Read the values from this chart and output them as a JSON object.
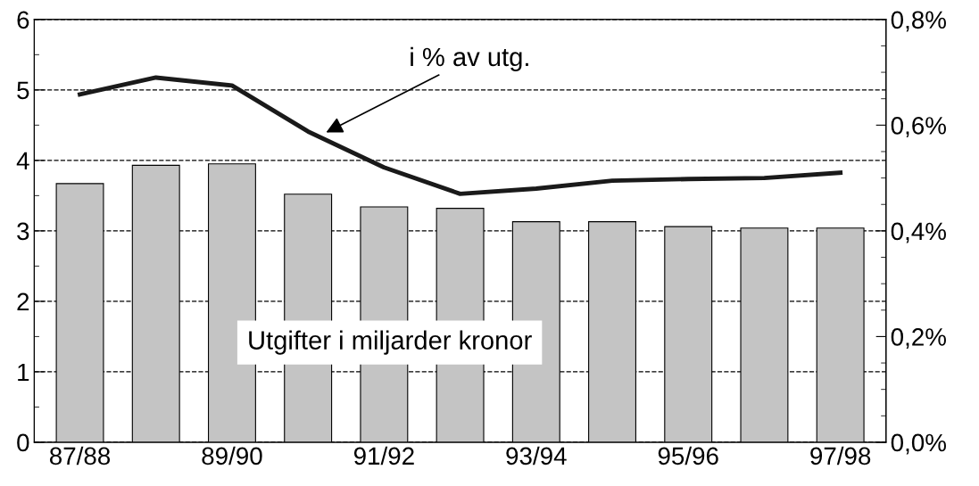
{
  "chart_data": {
    "type": "bar",
    "categories": [
      "87/88",
      null,
      "89/90",
      null,
      "91/92",
      null,
      "93/94",
      null,
      "95/96",
      null,
      "97/98"
    ],
    "series": [
      {
        "color": "#c4c4c4",
        "values": [
          3.67,
          3.93,
          3.95,
          3.52,
          3.34,
          3.32,
          3.13,
          3.13,
          3.06,
          3.04,
          3.04
        ]
      },
      {
        "type": "line",
        "axis": "y2",
        "color": "#1a1a1a",
        "values": [
          0.658,
          0.69,
          0.675,
          0.588,
          0.52,
          0.47,
          0.48,
          0.495,
          0.498,
          0.5,
          0.51
        ]
      }
    ],
    "ylim": [
      0,
      6
    ],
    "yticks": [
      0,
      1,
      2,
      3,
      4,
      5,
      6
    ],
    "y2lim": [
      0,
      0.8
    ],
    "y2ticks": [
      {
        "value": 0,
        "label": "0,0%"
      },
      {
        "value": 0.2,
        "label": "0,2%"
      },
      {
        "value": 0.4,
        "label": "0,4%"
      },
      {
        "value": 0.6,
        "label": "0,6%"
      },
      {
        "value": 0.8,
        "label": "0,8%"
      }
    ],
    "grid": "y",
    "line_style": "solid",
    "marker": "none",
    "annotations": [
      "i % av utg.",
      "Utgifter i miljarder kronor"
    ]
  }
}
